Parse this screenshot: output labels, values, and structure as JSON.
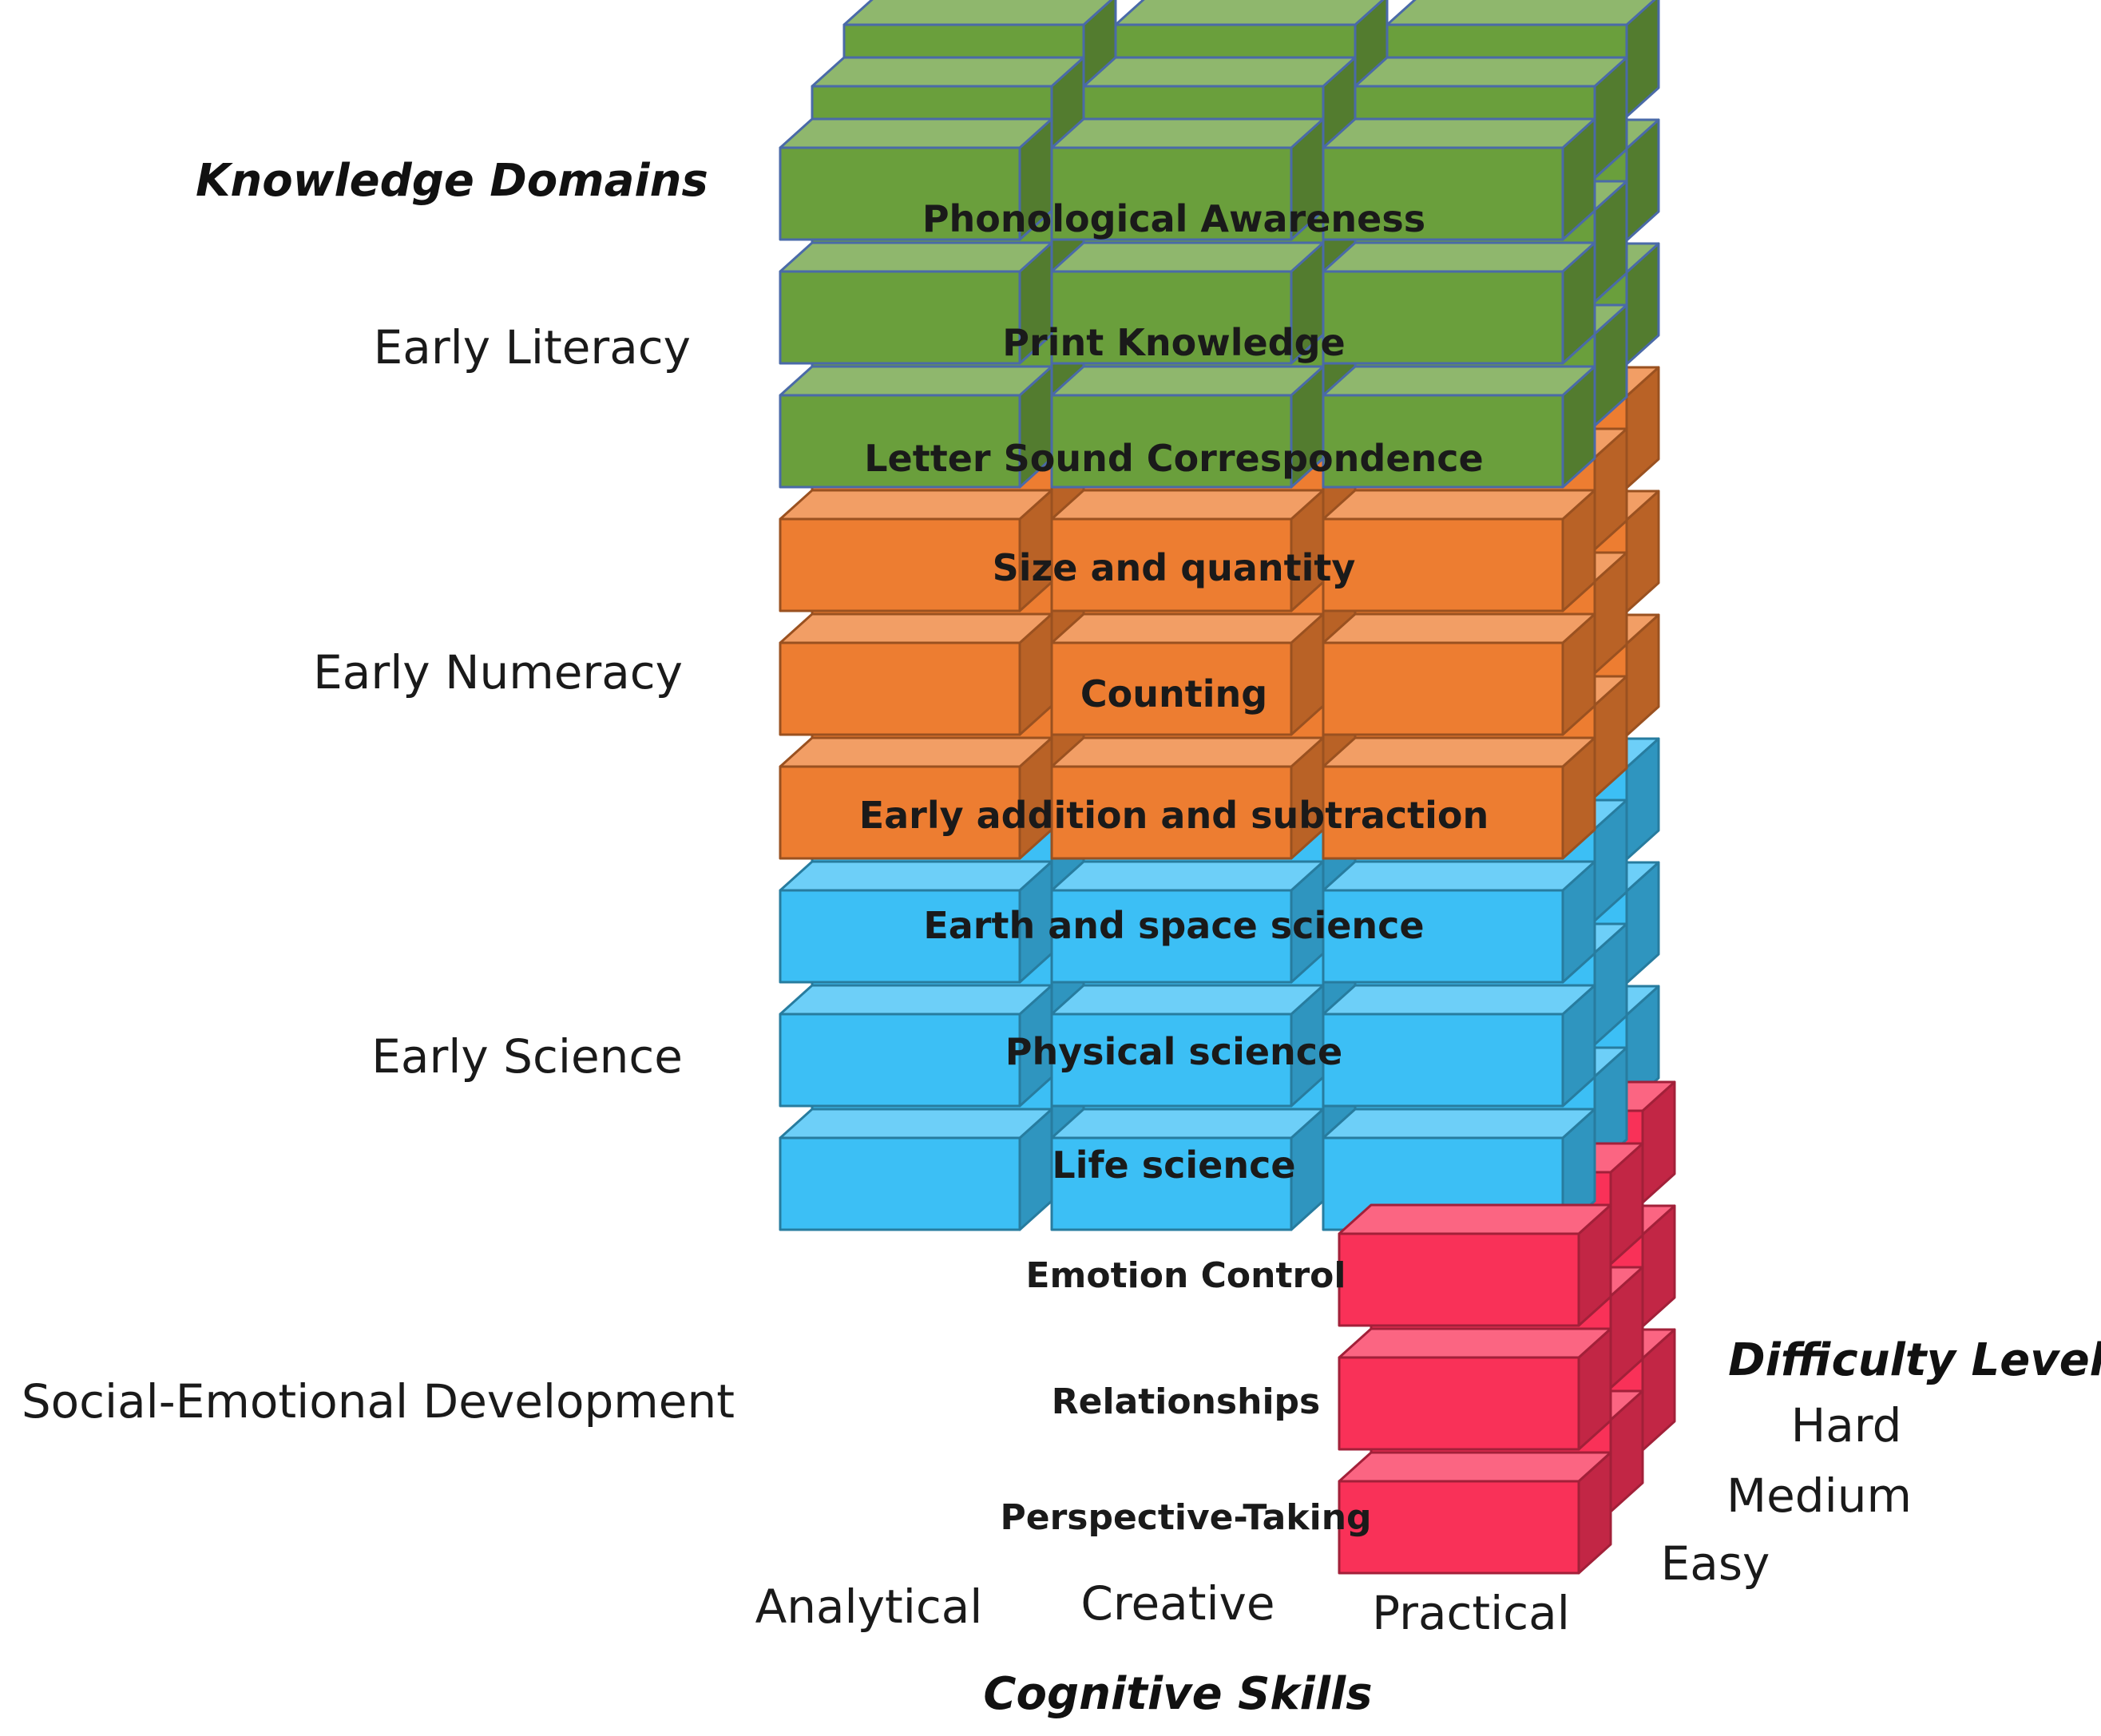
{
  "axes": {
    "knowledge_title": "Knowledge Domains",
    "cognitive_title": "Cognitive Skills",
    "difficulty_title": "Difficulty Level"
  },
  "domains": [
    {
      "label": "Early Literacy",
      "color": "#6a9f3c",
      "subdomains": [
        "Phonological Awareness",
        "Print Knowledge",
        "Letter Sound Correspondence"
      ]
    },
    {
      "label": "Early Numeracy",
      "color": "#ed7d31",
      "subdomains": [
        "Size and quantity",
        "Counting",
        "Early addition and subtraction"
      ]
    },
    {
      "label": "Early Science",
      "color": "#3cbff5",
      "subdomains": [
        "Earth and space science",
        "Physical science",
        "Life science"
      ]
    },
    {
      "label": "Social-Emotional Development",
      "color": "#f93158",
      "subdomains": [
        "Emotion Control",
        "Relationships",
        "Perspective-Taking"
      ]
    }
  ],
  "cognitive_skills": [
    "Analytical",
    "Creative",
    "Practical"
  ],
  "difficulty_levels": [
    "Hard",
    "Medium",
    "Easy"
  ]
}
